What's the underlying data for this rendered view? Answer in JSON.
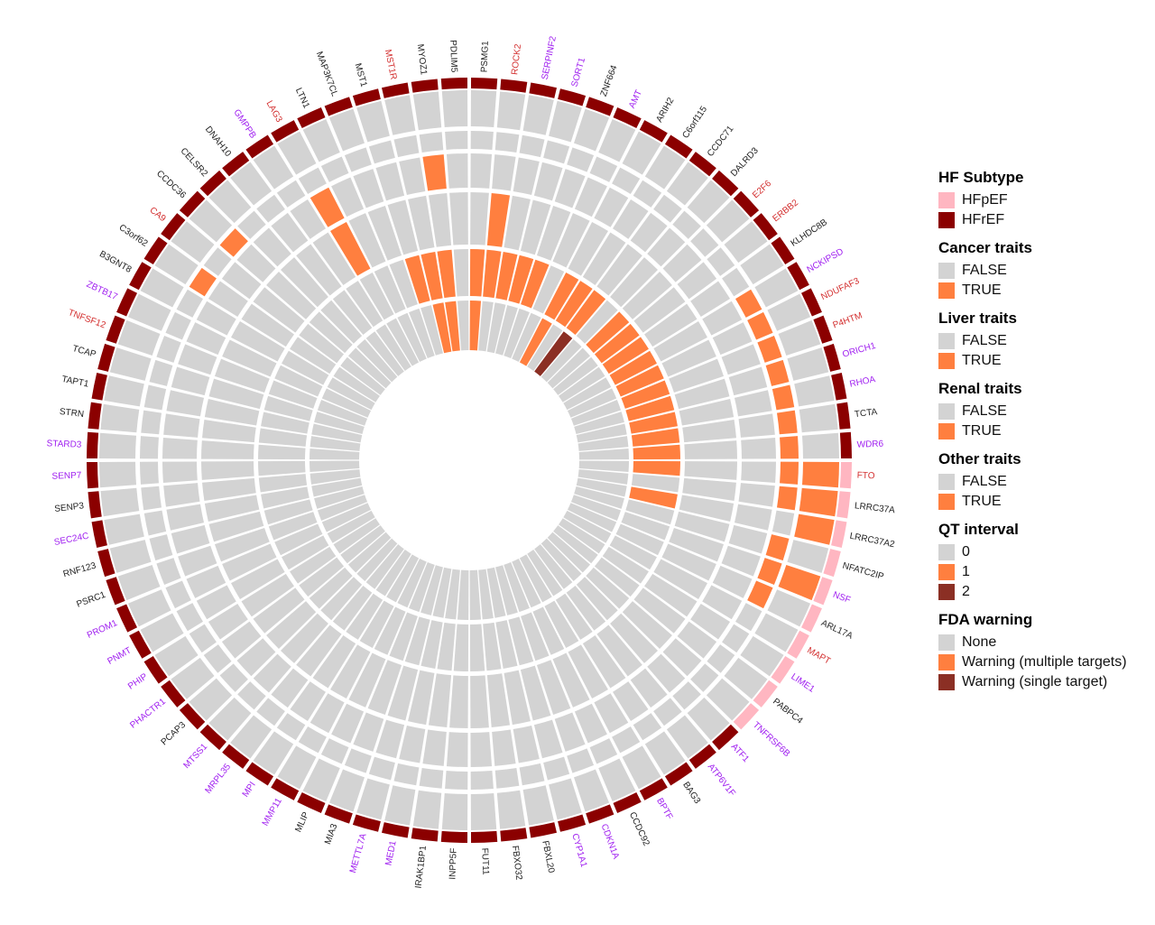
{
  "chart_data": {
    "type": "circular-heatmap",
    "title": "",
    "genes": [
      {
        "name": "FTO",
        "subtype": "HFpEF",
        "label_color": "#d32f2f",
        "rings": [
          1,
          1,
          0,
          0,
          1,
          0
        ]
      },
      {
        "name": "LRRC37A",
        "subtype": "HFpEF",
        "label_color": "#222222",
        "rings": [
          1,
          1,
          0,
          0,
          0,
          0
        ]
      },
      {
        "name": "LRRC37A2",
        "subtype": "HFpEF",
        "label_color": "#222222",
        "rings": [
          1,
          0,
          0,
          0,
          1,
          0
        ]
      },
      {
        "name": "NFATC2IP",
        "subtype": "HFpEF",
        "label_color": "#222222",
        "rings": [
          0,
          1,
          0,
          0,
          0,
          0
        ]
      },
      {
        "name": "NSF",
        "subtype": "HFpEF",
        "label_color": "#a020f0",
        "rings": [
          1,
          1,
          0,
          0,
          0,
          0
        ]
      },
      {
        "name": "ARL17A",
        "subtype": "HFpEF",
        "label_color": "#222222",
        "rings": [
          0,
          1,
          0,
          0,
          0,
          0
        ]
      },
      {
        "name": "MAPT",
        "subtype": "HFpEF",
        "label_color": "#d32f2f",
        "rings": [
          0,
          0,
          0,
          0,
          0,
          0
        ]
      },
      {
        "name": "LIME1",
        "subtype": "HFpEF",
        "label_color": "#a020f0",
        "rings": [
          0,
          0,
          0,
          0,
          0,
          0
        ]
      },
      {
        "name": "PABPC4",
        "subtype": "HFpEF",
        "label_color": "#222222",
        "rings": [
          0,
          0,
          0,
          0,
          0,
          0
        ]
      },
      {
        "name": "TNFRSF6B",
        "subtype": "HFpEF",
        "label_color": "#a020f0",
        "rings": [
          0,
          0,
          0,
          0,
          0,
          0
        ]
      },
      {
        "name": "ATF1",
        "subtype": "HFrEF",
        "label_color": "#a020f0",
        "rings": [
          0,
          0,
          0,
          0,
          0,
          0
        ]
      },
      {
        "name": "ATP6V1F",
        "subtype": "HFrEF",
        "label_color": "#a020f0",
        "rings": [
          0,
          0,
          0,
          0,
          0,
          0
        ]
      },
      {
        "name": "BAG3",
        "subtype": "HFrEF",
        "label_color": "#222222",
        "rings": [
          0,
          0,
          0,
          0,
          0,
          0
        ]
      },
      {
        "name": "BPTF",
        "subtype": "HFrEF",
        "label_color": "#a020f0",
        "rings": [
          0,
          0,
          0,
          0,
          0,
          0
        ]
      },
      {
        "name": "CCDC92",
        "subtype": "HFrEF",
        "label_color": "#222222",
        "rings": [
          0,
          0,
          0,
          0,
          0,
          0
        ]
      },
      {
        "name": "CDKN1A",
        "subtype": "HFrEF",
        "label_color": "#a020f0",
        "rings": [
          0,
          0,
          0,
          0,
          0,
          0
        ]
      },
      {
        "name": "CYP1A1",
        "subtype": "HFrEF",
        "label_color": "#a020f0",
        "rings": [
          0,
          0,
          0,
          0,
          0,
          0
        ]
      },
      {
        "name": "FBXL20",
        "subtype": "HFrEF",
        "label_color": "#222222",
        "rings": [
          0,
          0,
          0,
          0,
          0,
          0
        ]
      },
      {
        "name": "FBXO32",
        "subtype": "HFrEF",
        "label_color": "#222222",
        "rings": [
          0,
          0,
          0,
          0,
          0,
          0
        ]
      },
      {
        "name": "FUT11",
        "subtype": "HFrEF",
        "label_color": "#222222",
        "rings": [
          0,
          0,
          0,
          0,
          0,
          0
        ]
      },
      {
        "name": "INPP5F",
        "subtype": "HFrEF",
        "label_color": "#222222",
        "rings": [
          0,
          0,
          0,
          0,
          0,
          0
        ]
      },
      {
        "name": "IRAK1BP1",
        "subtype": "HFrEF",
        "label_color": "#222222",
        "rings": [
          0,
          0,
          0,
          0,
          0,
          0
        ]
      },
      {
        "name": "MED1",
        "subtype": "HFrEF",
        "label_color": "#a020f0",
        "rings": [
          0,
          0,
          0,
          0,
          0,
          0
        ]
      },
      {
        "name": "METTL7A",
        "subtype": "HFrEF",
        "label_color": "#a020f0",
        "rings": [
          0,
          0,
          0,
          0,
          0,
          0
        ]
      },
      {
        "name": "MIA3",
        "subtype": "HFrEF",
        "label_color": "#222222",
        "rings": [
          0,
          0,
          0,
          0,
          0,
          0
        ]
      },
      {
        "name": "MLIP",
        "subtype": "HFrEF",
        "label_color": "#222222",
        "rings": [
          0,
          0,
          0,
          0,
          0,
          0
        ]
      },
      {
        "name": "MMP11",
        "subtype": "HFrEF",
        "label_color": "#a020f0",
        "rings": [
          0,
          0,
          0,
          0,
          0,
          0
        ]
      },
      {
        "name": "MPI",
        "subtype": "HFrEF",
        "label_color": "#a020f0",
        "rings": [
          0,
          0,
          0,
          0,
          0,
          0
        ]
      },
      {
        "name": "MRPL35",
        "subtype": "HFrEF",
        "label_color": "#a020f0",
        "rings": [
          0,
          0,
          0,
          0,
          0,
          0
        ]
      },
      {
        "name": "MTSS1",
        "subtype": "HFrEF",
        "label_color": "#a020f0",
        "rings": [
          0,
          0,
          0,
          0,
          0,
          0
        ]
      },
      {
        "name": "PCAP3",
        "subtype": "HFrEF",
        "label_color": "#222222",
        "rings": [
          0,
          0,
          0,
          0,
          0,
          0
        ]
      },
      {
        "name": "PHACTR1",
        "subtype": "HFrEF",
        "label_color": "#a020f0",
        "rings": [
          0,
          0,
          0,
          0,
          0,
          0
        ]
      },
      {
        "name": "PHIP",
        "subtype": "HFrEF",
        "label_color": "#a020f0",
        "rings": [
          0,
          0,
          0,
          0,
          0,
          0
        ]
      },
      {
        "name": "PNMT",
        "subtype": "HFrEF",
        "label_color": "#a020f0",
        "rings": [
          0,
          0,
          0,
          0,
          0,
          0
        ]
      },
      {
        "name": "PROM1",
        "subtype": "HFrEF",
        "label_color": "#a020f0",
        "rings": [
          0,
          0,
          0,
          0,
          0,
          0
        ]
      },
      {
        "name": "PSRC1",
        "subtype": "HFrEF",
        "label_color": "#222222",
        "rings": [
          0,
          0,
          0,
          0,
          0,
          0
        ]
      },
      {
        "name": "RNF123",
        "subtype": "HFrEF",
        "label_color": "#222222",
        "rings": [
          0,
          0,
          0,
          0,
          0,
          0
        ]
      },
      {
        "name": "SEC24C",
        "subtype": "HFrEF",
        "label_color": "#a020f0",
        "rings": [
          0,
          0,
          0,
          0,
          0,
          0
        ]
      },
      {
        "name": "SENP3",
        "subtype": "HFrEF",
        "label_color": "#222222",
        "rings": [
          0,
          0,
          0,
          0,
          0,
          0
        ]
      },
      {
        "name": "SENP7",
        "subtype": "HFrEF",
        "label_color": "#a020f0",
        "rings": [
          0,
          0,
          0,
          0,
          0,
          0
        ]
      },
      {
        "name": "STARD3",
        "subtype": "HFrEF",
        "label_color": "#a020f0",
        "rings": [
          0,
          0,
          0,
          0,
          0,
          0
        ]
      },
      {
        "name": "STRN",
        "subtype": "HFrEF",
        "label_color": "#222222",
        "rings": [
          0,
          0,
          0,
          0,
          0,
          0
        ]
      },
      {
        "name": "TAPT1",
        "subtype": "HFrEF",
        "label_color": "#222222",
        "rings": [
          0,
          0,
          0,
          0,
          0,
          0
        ]
      },
      {
        "name": "TCAP",
        "subtype": "HFrEF",
        "label_color": "#222222",
        "rings": [
          0,
          0,
          0,
          0,
          0,
          0
        ]
      },
      {
        "name": "TNFSF12",
        "subtype": "HFrEF",
        "label_color": "#d32f2f",
        "rings": [
          0,
          0,
          0,
          0,
          0,
          0
        ]
      },
      {
        "name": "ZBTB17",
        "subtype": "HFrEF",
        "label_color": "#a020f0",
        "rings": [
          0,
          0,
          0,
          0,
          0,
          0
        ]
      },
      {
        "name": "B3GNT8",
        "subtype": "HFrEF",
        "label_color": "#222222",
        "rings": [
          0,
          0,
          0,
          0,
          0,
          0
        ]
      },
      {
        "name": "C3orf62",
        "subtype": "HFrEF",
        "label_color": "#222222",
        "rings": [
          0,
          1,
          0,
          0,
          0,
          0
        ]
      },
      {
        "name": "CA9",
        "subtype": "HFrEF",
        "label_color": "#d32f2f",
        "rings": [
          0,
          0,
          0,
          0,
          0,
          0
        ]
      },
      {
        "name": "CCDC36",
        "subtype": "HFrEF",
        "label_color": "#222222",
        "rings": [
          0,
          1,
          0,
          0,
          0,
          0
        ]
      },
      {
        "name": "CELSR2",
        "subtype": "HFrEF",
        "label_color": "#222222",
        "rings": [
          0,
          0,
          0,
          0,
          0,
          0
        ]
      },
      {
        "name": "DNAH10",
        "subtype": "HFrEF",
        "label_color": "#222222",
        "rings": [
          0,
          0,
          0,
          0,
          0,
          0
        ]
      },
      {
        "name": "GMPPB",
        "subtype": "HFrEF",
        "label_color": "#a020f0",
        "rings": [
          0,
          0,
          0,
          0,
          0,
          0
        ]
      },
      {
        "name": "LAG3",
        "subtype": "HFrEF",
        "label_color": "#d32f2f",
        "rings": [
          0,
          0,
          1,
          1,
          0,
          0
        ]
      },
      {
        "name": "LTN1",
        "subtype": "HFrEF",
        "label_color": "#222222",
        "rings": [
          0,
          0,
          0,
          0,
          0,
          0
        ]
      },
      {
        "name": "MAP3K7CL",
        "subtype": "HFrEF",
        "label_color": "#222222",
        "rings": [
          0,
          0,
          0,
          0,
          0,
          0
        ]
      },
      {
        "name": "MST1",
        "subtype": "HFrEF",
        "label_color": "#222222",
        "rings": [
          0,
          0,
          0,
          0,
          1,
          0
        ]
      },
      {
        "name": "MST1R",
        "subtype": "HFrEF",
        "label_color": "#d32f2f",
        "rings": [
          0,
          0,
          0,
          0,
          1,
          1
        ]
      },
      {
        "name": "MYOZ1",
        "subtype": "HFrEF",
        "label_color": "#222222",
        "rings": [
          0,
          0,
          1,
          0,
          1,
          1
        ]
      },
      {
        "name": "PDLIM5",
        "subtype": "HFrEF",
        "label_color": "#222222",
        "rings": [
          0,
          0,
          0,
          0,
          0,
          0
        ]
      },
      {
        "name": "PSMG1",
        "subtype": "HFrEF",
        "label_color": "#222222",
        "rings": [
          0,
          0,
          0,
          0,
          1,
          1
        ]
      },
      {
        "name": "ROCK2",
        "subtype": "HFrEF",
        "label_color": "#d32f2f",
        "rings": [
          0,
          0,
          0,
          1,
          1,
          0
        ]
      },
      {
        "name": "SERPINF2",
        "subtype": "HFrEF",
        "label_color": "#a020f0",
        "rings": [
          0,
          0,
          0,
          0,
          1,
          0
        ]
      },
      {
        "name": "SORT1",
        "subtype": "HFrEF",
        "label_color": "#a020f0",
        "rings": [
          0,
          0,
          0,
          0,
          1,
          0
        ]
      },
      {
        "name": "ZNF664",
        "subtype": "HFrEF",
        "label_color": "#222222",
        "rings": [
          0,
          0,
          0,
          0,
          1,
          0
        ]
      },
      {
        "name": "AMT",
        "subtype": "HFrEF",
        "label_color": "#a020f0",
        "rings": [
          0,
          0,
          0,
          0,
          0,
          0
        ]
      },
      {
        "name": "ARIH2",
        "subtype": "HFrEF",
        "label_color": "#222222",
        "rings": [
          0,
          0,
          0,
          0,
          1,
          1
        ]
      },
      {
        "name": "C6orf115",
        "subtype": "HFrEF",
        "label_color": "#222222",
        "rings": [
          0,
          0,
          0,
          0,
          1,
          0
        ]
      },
      {
        "name": "CCDC71",
        "subtype": "HFrEF",
        "label_color": "#222222",
        "rings": [
          0,
          0,
          0,
          0,
          1,
          2
        ]
      },
      {
        "name": "DALRD3",
        "subtype": "HFrEF",
        "label_color": "#222222",
        "rings": [
          0,
          0,
          0,
          0,
          0,
          0
        ]
      },
      {
        "name": "E2F6",
        "subtype": "HFrEF",
        "label_color": "#d32f2f",
        "rings": [
          0,
          0,
          0,
          0,
          1,
          0
        ]
      },
      {
        "name": "ERBB2",
        "subtype": "HFrEF",
        "label_color": "#d32f2f",
        "rings": [
          0,
          0,
          0,
          0,
          1,
          0
        ]
      },
      {
        "name": "KLHDC8B",
        "subtype": "HFrEF",
        "label_color": "#222222",
        "rings": [
          0,
          0,
          0,
          0,
          1,
          0
        ]
      },
      {
        "name": "NCKIPSD",
        "subtype": "HFrEF",
        "label_color": "#a020f0",
        "rings": [
          0,
          1,
          0,
          0,
          1,
          0
        ]
      },
      {
        "name": "NDUFAF3",
        "subtype": "HFrEF",
        "label_color": "#d32f2f",
        "rings": [
          0,
          1,
          0,
          0,
          1,
          0
        ]
      },
      {
        "name": "P4HTM",
        "subtype": "HFrEF",
        "label_color": "#d32f2f",
        "rings": [
          0,
          1,
          0,
          0,
          1,
          0
        ]
      },
      {
        "name": "ORICH1",
        "subtype": "HFrEF",
        "label_color": "#a020f0",
        "rings": [
          0,
          1,
          0,
          0,
          1,
          0
        ]
      },
      {
        "name": "RHOA",
        "subtype": "HFrEF",
        "label_color": "#a020f0",
        "rings": [
          0,
          1,
          0,
          0,
          1,
          0
        ]
      },
      {
        "name": "TCTA",
        "subtype": "HFrEF",
        "label_color": "#222222",
        "rings": [
          0,
          1,
          0,
          0,
          1,
          0
        ]
      },
      {
        "name": "WDR6",
        "subtype": "HFrEF",
        "label_color": "#a020f0",
        "rings": [
          0,
          1,
          0,
          0,
          1,
          0
        ]
      }
    ],
    "ring_order": [
      "Other traits",
      "Renal traits",
      "Liver traits",
      "Cancer traits",
      "QT interval",
      "FDA warning"
    ],
    "colors": {
      "HFpEF": "#ffb6c1",
      "HFrEF": "#8b0000",
      "false": "#d3d3d3",
      "true": "#ff7f3f",
      "level2": "#8b2f24"
    }
  },
  "legend": [
    {
      "title": "HF Subtype",
      "items": [
        {
          "label": "HFpEF",
          "color": "#ffb6c1"
        },
        {
          "label": "HFrEF",
          "color": "#8b0000"
        }
      ]
    },
    {
      "title": "Cancer traits",
      "items": [
        {
          "label": "FALSE",
          "color": "#d3d3d3"
        },
        {
          "label": "TRUE",
          "color": "#ff7f3f"
        }
      ]
    },
    {
      "title": "Liver traits",
      "items": [
        {
          "label": "FALSE",
          "color": "#d3d3d3"
        },
        {
          "label": "TRUE",
          "color": "#ff7f3f"
        }
      ]
    },
    {
      "title": "Renal traits",
      "items": [
        {
          "label": "FALSE",
          "color": "#d3d3d3"
        },
        {
          "label": "TRUE",
          "color": "#ff7f3f"
        }
      ]
    },
    {
      "title": "Other traits",
      "items": [
        {
          "label": "FALSE",
          "color": "#d3d3d3"
        },
        {
          "label": "TRUE",
          "color": "#ff7f3f"
        }
      ]
    },
    {
      "title": "QT interval",
      "items": [
        {
          "label": "0",
          "color": "#d3d3d3"
        },
        {
          "label": "1",
          "color": "#ff7f3f"
        },
        {
          "label": "2",
          "color": "#8b2f24"
        }
      ]
    },
    {
      "title": "FDA warning",
      "items": [
        {
          "label": "None",
          "color": "#d3d3d3"
        },
        {
          "label": "Warning (multiple targets)",
          "color": "#ff7f3f"
        },
        {
          "label": "Warning (single target)",
          "color": "#8b2f24"
        }
      ]
    }
  ]
}
